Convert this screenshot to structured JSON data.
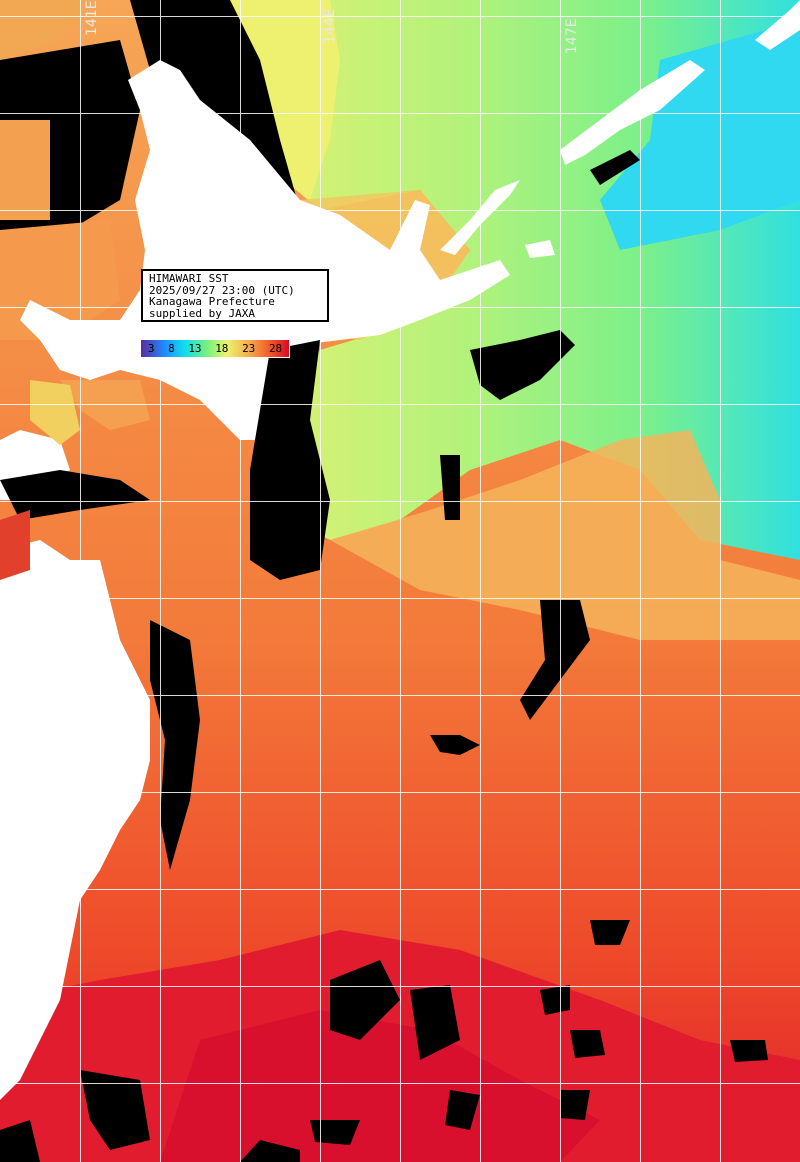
{
  "info": {
    "line1": "HIMAWARI SST",
    "line2": "2025/09/27 23:00 (UTC)",
    "line3": "Kanagawa Prefecture",
    "line4": "supplied by JAXA"
  },
  "legend": {
    "ticks": [
      "3",
      "8",
      "13",
      "18",
      "23",
      "28"
    ]
  },
  "axes": {
    "lon_labels": [
      "141E",
      "144E",
      "147E"
    ]
  },
  "colors": {
    "land": "#ffffff",
    "cloud": "#000000",
    "warm_red": "#e0202c",
    "orange": "#f37a3a",
    "light_orange": "#f6a656",
    "yellow": "#eef070",
    "green": "#98f080",
    "cyan": "#20e8e8",
    "grid": "#ffffff"
  }
}
